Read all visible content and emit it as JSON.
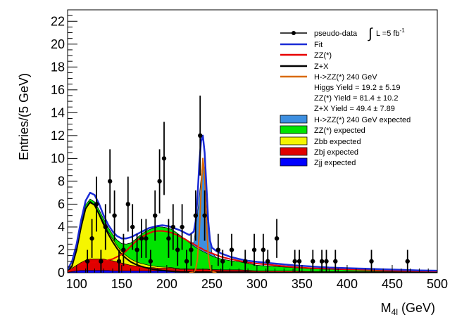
{
  "chart_data": {
    "type": "area",
    "title": "",
    "xlabel": "M",
    "xlabel_sub": "4l",
    "xlabel_unit": " (GeV)",
    "ylabel": "Entries/(5 GeV)",
    "xlim": [
      90,
      500
    ],
    "ylim": [
      0,
      23
    ],
    "xticks": [
      100,
      150,
      200,
      250,
      300,
      350,
      400,
      450,
      500
    ],
    "yticks": [
      0,
      2,
      4,
      6,
      8,
      10,
      12,
      14,
      16,
      18,
      20,
      22
    ],
    "grid": false,
    "legend_position": "top-right",
    "colors": {
      "higgs_expected": "#3d8fe0",
      "zz_expected": "#00e400",
      "zbb_expected": "#f5f500",
      "zbj_expected": "#e00000",
      "zjj_expected": "#0000ff",
      "fit": "#1a2bd6",
      "zz_curve": "#e80000",
      "zx_curve": "#000000",
      "higgs_curve": "#d96a00"
    },
    "legend": {
      "pseudo_data": "pseudo-data",
      "lumi_int": "∫",
      "lumi_L": "L =5 fb",
      "lumi_exp": "-1",
      "fit": "Fit",
      "zz": "ZZ(*)",
      "zx": "Z+X",
      "higgs_curve": "H->ZZ(*) 240 GeV",
      "higgs_yield": "Higgs  Yield = 19.2  ± 5.19",
      "zz_yield": "ZZ(*) Yield = 81.4  ± 10.2",
      "zx_yield": "Z+X Yield = 49.4  ± 7.89",
      "higgs_expected": "H->ZZ(*) 240 GeV expected",
      "zz_expected": "ZZ(*) expected",
      "zbb_expected": "Zbb expected",
      "zbj_expected": "Zbj expected",
      "zjj_expected": "Zjj expected"
    },
    "stack_x": [
      90,
      95,
      100,
      105,
      110,
      115,
      120,
      125,
      130,
      135,
      140,
      145,
      150,
      155,
      160,
      165,
      170,
      175,
      180,
      185,
      190,
      195,
      200,
      205,
      210,
      215,
      220,
      225,
      230,
      235,
      240,
      245,
      250,
      255,
      260,
      270,
      280,
      290,
      300,
      320,
      340,
      360,
      380,
      400,
      420,
      440,
      460,
      480,
      500
    ],
    "stack_series": [
      {
        "key": "zjj_expected",
        "values": [
          0.05,
          0.1,
          0.15,
          0.2,
          0.2,
          0.2,
          0.2,
          0.2,
          0.2,
          0.2,
          0.15,
          0.15,
          0.15,
          0.15,
          0.15,
          0.15,
          0.15,
          0.15,
          0.15,
          0.15,
          0.15,
          0.15,
          0.15,
          0.15,
          0.1,
          0.1,
          0.1,
          0.1,
          0.1,
          0.1,
          0.1,
          0.1,
          0.1,
          0.1,
          0.1,
          0.1,
          0.1,
          0.1,
          0.05,
          0.05,
          0.05,
          0.05,
          0.05,
          0.05,
          0.05,
          0.05,
          0.05,
          0.05,
          0.05
        ]
      },
      {
        "key": "zbj_expected",
        "values": [
          0.1,
          0.3,
          0.5,
          0.7,
          0.9,
          1.0,
          1.0,
          1.0,
          1.0,
          0.9,
          0.9,
          0.8,
          0.7,
          0.6,
          0.5,
          0.45,
          0.4,
          0.35,
          0.3,
          0.3,
          0.25,
          0.25,
          0.25,
          0.25,
          0.25,
          0.2,
          0.2,
          0.2,
          0.2,
          0.2,
          0.2,
          0.2,
          0.15,
          0.15,
          0.15,
          0.15,
          0.15,
          0.1,
          0.1,
          0.1,
          0.1,
          0.05,
          0.05,
          0.05,
          0.05,
          0.05,
          0.05,
          0.05,
          0.05
        ]
      },
      {
        "key": "zbb_expected",
        "values": [
          0.1,
          0.5,
          1.5,
          3.2,
          4.5,
          4.9,
          4.7,
          4.0,
          3.2,
          2.5,
          1.9,
          1.4,
          1.0,
          0.75,
          0.55,
          0.4,
          0.3,
          0.25,
          0.2,
          0.15,
          0.12,
          0.1,
          0.08,
          0.06,
          0.05,
          0.05,
          0.04,
          0.03,
          0.03,
          0.02,
          0.02,
          0.02,
          0.02,
          0.02,
          0.01,
          0.01,
          0.01,
          0.01,
          0,
          0,
          0,
          0,
          0,
          0,
          0,
          0,
          0,
          0,
          0
        ]
      },
      {
        "key": "zz_expected",
        "values": [
          0.05,
          0.1,
          0.2,
          0.3,
          0.35,
          0.35,
          0.3,
          0.3,
          0.3,
          0.35,
          0.4,
          0.5,
          0.7,
          1.0,
          1.4,
          1.9,
          2.4,
          2.8,
          3.1,
          3.3,
          3.5,
          3.5,
          3.45,
          3.35,
          3.15,
          2.9,
          2.6,
          2.3,
          2.0,
          1.75,
          1.55,
          1.35,
          1.2,
          1.05,
          0.95,
          0.8,
          0.7,
          0.6,
          0.5,
          0.4,
          0.3,
          0.25,
          0.2,
          0.15,
          0.12,
          0.1,
          0.08,
          0.06,
          0.05
        ]
      },
      {
        "key": "higgs_expected",
        "values": [
          0,
          0,
          0,
          0,
          0,
          0,
          0,
          0,
          0,
          0,
          0,
          0,
          0,
          0,
          0,
          0,
          0,
          0,
          0,
          0,
          0,
          0,
          0,
          0,
          0,
          0,
          0,
          0,
          0.3,
          3.8,
          8.0,
          3.0,
          0.3,
          0,
          0,
          0,
          0,
          0,
          0,
          0,
          0,
          0,
          0,
          0,
          0,
          0,
          0,
          0,
          0
        ]
      }
    ],
    "curve_x": [
      90,
      95,
      100,
      105,
      110,
      115,
      120,
      125,
      130,
      135,
      140,
      145,
      150,
      155,
      160,
      165,
      170,
      175,
      180,
      185,
      190,
      195,
      200,
      205,
      210,
      215,
      220,
      225,
      230,
      232,
      234,
      236,
      238,
      240,
      242,
      244,
      246,
      248,
      250,
      255,
      260,
      270,
      280,
      290,
      300,
      320,
      340,
      360,
      380,
      400,
      420,
      440,
      460,
      480,
      500
    ],
    "curves": [
      {
        "key": "fit",
        "values": [
          0.3,
          1.0,
          2.5,
          4.6,
          6.3,
          7.0,
          6.8,
          6.0,
          5.0,
          4.2,
          3.6,
          3.2,
          3.0,
          3.0,
          3.1,
          3.3,
          3.5,
          3.7,
          3.9,
          4.0,
          4.1,
          4.15,
          4.1,
          4.0,
          3.85,
          3.7,
          3.5,
          3.3,
          3.6,
          4.5,
          6.5,
          9.5,
          11.5,
          12.0,
          10.5,
          7.5,
          4.5,
          2.8,
          2.2,
          1.9,
          1.7,
          1.4,
          1.2,
          1.05,
          0.95,
          0.8,
          0.65,
          0.55,
          0.45,
          0.4,
          0.35,
          0.3,
          0.25,
          0.2,
          0.18
        ]
      },
      {
        "key": "zz_curve",
        "values": [
          0.1,
          0.3,
          0.5,
          0.7,
          0.8,
          0.9,
          0.9,
          1.0,
          1.0,
          1.1,
          1.2,
          1.4,
          1.6,
          1.9,
          2.3,
          2.7,
          3.0,
          3.25,
          3.45,
          3.6,
          3.65,
          3.65,
          3.6,
          3.5,
          3.35,
          3.15,
          2.95,
          2.7,
          2.5,
          2.4,
          2.3,
          2.2,
          2.15,
          2.05,
          1.95,
          1.9,
          1.8,
          1.75,
          1.7,
          1.55,
          1.4,
          1.2,
          1.05,
          0.9,
          0.8,
          0.65,
          0.5,
          0.4,
          0.35,
          0.3,
          0.25,
          0.2,
          0.17,
          0.15,
          0.12
        ]
      },
      {
        "key": "zx_curve",
        "values": [
          0.1,
          0.6,
          2.0,
          4.0,
          5.6,
          6.2,
          5.9,
          5.1,
          4.2,
          3.4,
          2.7,
          2.1,
          1.6,
          1.25,
          0.95,
          0.75,
          0.6,
          0.48,
          0.38,
          0.3,
          0.25,
          0.2,
          0.16,
          0.13,
          0.1,
          0.08,
          0.07,
          0.06,
          0.05,
          0.05,
          0.05,
          0.04,
          0.04,
          0.04,
          0.04,
          0.04,
          0.04,
          0.03,
          0.03,
          0.03,
          0.03,
          0.02,
          0.02,
          0.02,
          0.02,
          0.01,
          0.01,
          0.01,
          0.01,
          0,
          0,
          0,
          0,
          0,
          0
        ]
      },
      {
        "key": "higgs_curve",
        "values": [
          0,
          0,
          0,
          0,
          0,
          0,
          0,
          0,
          0,
          0,
          0,
          0,
          0,
          0,
          0,
          0,
          0,
          0,
          0,
          0,
          0,
          0,
          0,
          0,
          0,
          0,
          0,
          0,
          0.05,
          0.3,
          1.2,
          3.5,
          7.0,
          10.0,
          8.5,
          4.5,
          1.5,
          0.4,
          0.1,
          0,
          0,
          0,
          0,
          0,
          0,
          0,
          0,
          0,
          0,
          0,
          0,
          0,
          0,
          0,
          0
        ]
      }
    ],
    "data_points": [
      {
        "x": 112,
        "y": 1,
        "err": 1
      },
      {
        "x": 117,
        "y": 3,
        "err": 1.7
      },
      {
        "x": 122,
        "y": 6,
        "err": 2.4
      },
      {
        "x": 127,
        "y": 1,
        "err": 1
      },
      {
        "x": 132,
        "y": 4,
        "err": 2
      },
      {
        "x": 137,
        "y": 8,
        "err": 2.8
      },
      {
        "x": 142,
        "y": 5,
        "err": 2.2
      },
      {
        "x": 147,
        "y": 1,
        "err": 1
      },
      {
        "x": 152,
        "y": 2,
        "err": 1.4
      },
      {
        "x": 157,
        "y": 6,
        "err": 2.4
      },
      {
        "x": 162,
        "y": 4,
        "err": 2
      },
      {
        "x": 167,
        "y": 2,
        "err": 1.4
      },
      {
        "x": 172,
        "y": 3,
        "err": 1.7
      },
      {
        "x": 177,
        "y": 3,
        "err": 1.7
      },
      {
        "x": 182,
        "y": 1,
        "err": 1
      },
      {
        "x": 187,
        "y": 5,
        "err": 2.2
      },
      {
        "x": 192,
        "y": 8,
        "err": 2.8
      },
      {
        "x": 197,
        "y": 10,
        "err": 3.2
      },
      {
        "x": 202,
        "y": 3,
        "err": 1.7
      },
      {
        "x": 207,
        "y": 4,
        "err": 2
      },
      {
        "x": 212,
        "y": 2,
        "err": 1.4
      },
      {
        "x": 217,
        "y": 4,
        "err": 2
      },
      {
        "x": 222,
        "y": 1,
        "err": 1
      },
      {
        "x": 227,
        "y": 2,
        "err": 1.4
      },
      {
        "x": 232,
        "y": 5,
        "err": 2.2
      },
      {
        "x": 237,
        "y": 12,
        "err": 3.5
      },
      {
        "x": 242,
        "y": 5,
        "err": 2.2
      },
      {
        "x": 257,
        "y": 2,
        "err": 1.4
      },
      {
        "x": 262,
        "y": 1,
        "err": 1
      },
      {
        "x": 272,
        "y": 2,
        "err": 1.4
      },
      {
        "x": 287,
        "y": 1,
        "err": 1
      },
      {
        "x": 297,
        "y": 2,
        "err": 1.4
      },
      {
        "x": 307,
        "y": 2,
        "err": 1.4
      },
      {
        "x": 312,
        "y": 1,
        "err": 1
      },
      {
        "x": 322,
        "y": 3,
        "err": 1.7
      },
      {
        "x": 342,
        "y": 1,
        "err": 1
      },
      {
        "x": 347,
        "y": 1,
        "err": 1
      },
      {
        "x": 362,
        "y": 1,
        "err": 1
      },
      {
        "x": 372,
        "y": 1,
        "err": 1
      },
      {
        "x": 377,
        "y": 1,
        "err": 1
      },
      {
        "x": 387,
        "y": 1,
        "err": 1
      },
      {
        "x": 427,
        "y": 1,
        "err": 1
      },
      {
        "x": 467,
        "y": 1,
        "err": 1
      }
    ]
  }
}
